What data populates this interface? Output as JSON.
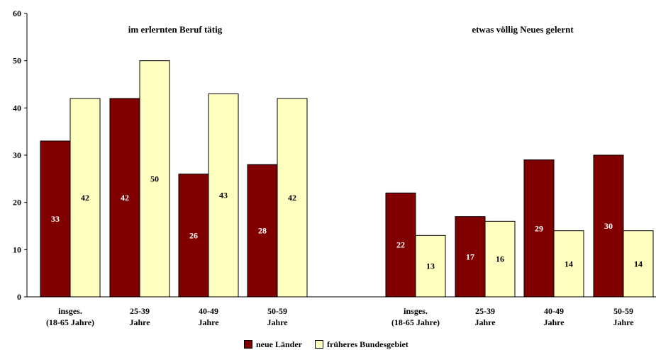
{
  "chart_data": {
    "type": "bar",
    "ylim": [
      0,
      60
    ],
    "yticks": [
      "0",
      "10",
      "20",
      "30",
      "40",
      "50",
      "60"
    ],
    "groups": [
      {
        "title": "im erlernten Beruf tätig",
        "categories": [
          [
            "insges.",
            "(18-65 Jahre)"
          ],
          [
            "25-39",
            "Jahre"
          ],
          [
            "40-49",
            "Jahre"
          ],
          [
            "50-59",
            "Jahre"
          ]
        ],
        "series": [
          {
            "name": "neue Länder",
            "values": [
              33,
              42,
              26,
              28
            ]
          },
          {
            "name": "früheres Bundesgebiet",
            "values": [
              42,
              50,
              43,
              42
            ]
          }
        ]
      },
      {
        "title": "etwas völlig Neues gelernt",
        "categories": [
          [
            "insges.",
            "(18-65 Jahre)"
          ],
          [
            "25-39",
            "Jahre"
          ],
          [
            "40-49",
            "Jahre"
          ],
          [
            "50-59",
            "Jahre"
          ]
        ],
        "series": [
          {
            "name": "neue Länder",
            "values": [
              22,
              17,
              29,
              30
            ]
          },
          {
            "name": "früheres Bundesgebiet",
            "values": [
              13,
              16,
              14,
              14
            ]
          }
        ]
      }
    ],
    "legend": [
      {
        "name": "neue Länder",
        "color": "#800000"
      },
      {
        "name": "früheres Bundesgebiet",
        "color": "#FFFFC0"
      }
    ],
    "legend_position": "bottom-center",
    "grid": false,
    "colors": {
      "neue_laender": "#800000",
      "frueheres_bundesgebiet": "#FFFFC0",
      "label_on_dark": "#ffffff",
      "label_on_light": "#000000"
    }
  }
}
